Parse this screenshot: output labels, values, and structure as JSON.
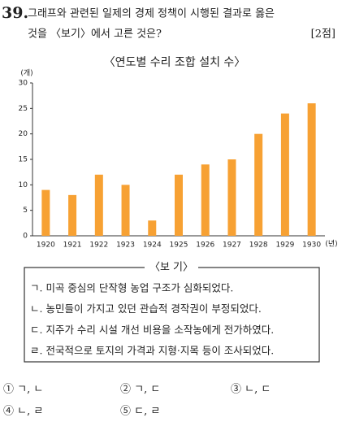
{
  "question": {
    "number": "39.",
    "lines": [
      "그래프와 관련된 일제의 경제 정책이 시행된 결과로 옳은",
      "것을 〈보기〉에서 고른 것은?"
    ],
    "points": "[2점]"
  },
  "chart_data": {
    "type": "bar",
    "title": "〈연도별 수리 조합 설치 수〉",
    "y_unit": "(개)",
    "x_unit": "(년)",
    "categories": [
      "1920",
      "1921",
      "1922",
      "1923",
      "1924",
      "1925",
      "1926",
      "1927",
      "1928",
      "1929",
      "1930"
    ],
    "values": [
      9,
      8,
      12,
      10,
      3,
      12,
      14,
      15,
      20,
      24,
      26
    ],
    "color": "#f7a133",
    "ylim": [
      0,
      30
    ],
    "yticks": [
      0,
      5,
      10,
      15,
      20,
      25,
      30
    ],
    "grid": false
  },
  "box": {
    "title": "〈보 기〉",
    "items": [
      "ㄱ. 미곡 중심의 단작형 농업 구조가 심화되었다.",
      "ㄴ. 농민들이 가지고 있던 관습적 경작권이 부정되었다.",
      "ㄷ. 지주가 수리 시설 개선 비용을 소작농에게 전가하였다.",
      "ㄹ. 전국적으로 토지의 가격과 지형·지목 등이 조사되었다."
    ]
  },
  "options": [
    "① ㄱ, ㄴ",
    "② ㄱ, ㄷ",
    "③ ㄴ, ㄷ",
    "④ ㄴ, ㄹ",
    "⑤ ㄷ, ㄹ"
  ]
}
